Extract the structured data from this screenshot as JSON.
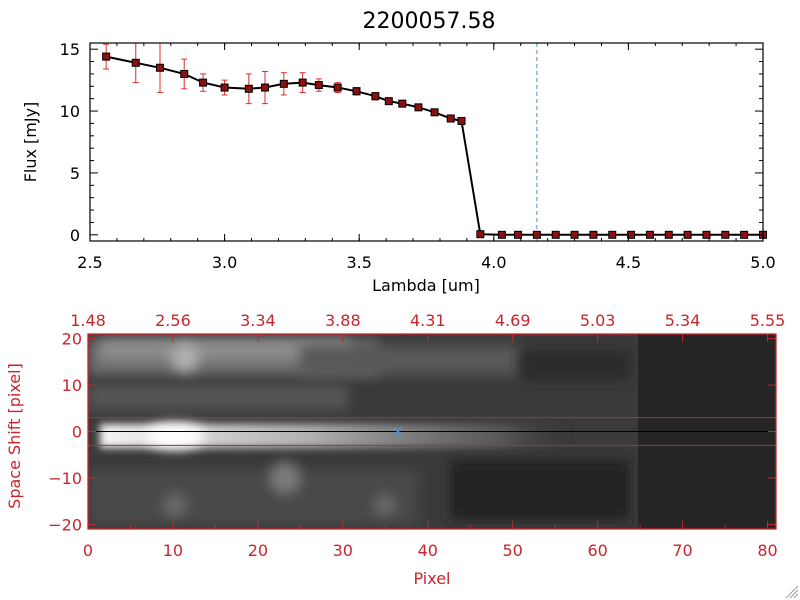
{
  "colors": {
    "red": "#c8252d",
    "marker_red": "#8b1010",
    "errorbar_red": "#d83030",
    "blue_dash": "#4f8fdc",
    "black": "#000000"
  },
  "chart_data": [
    {
      "type": "line",
      "title": "2200057.58",
      "xlabel": "Lambda [um]",
      "ylabel": "Flux [mJy]",
      "xlim": [
        2.5,
        5.0
      ],
      "ylim": [
        -0.5,
        15.5
      ],
      "x_ticks": [
        "2.5",
        "3.0",
        "3.5",
        "4.0",
        "4.5",
        "5.0"
      ],
      "x_tick_values": [
        2.5,
        3.0,
        3.5,
        4.0,
        4.5,
        5.0
      ],
      "y_ticks": [
        "0",
        "5",
        "10",
        "15"
      ],
      "y_tick_values": [
        0,
        5,
        10,
        15
      ],
      "vline_x": 4.16,
      "grid": false,
      "series": [
        {
          "x": [
            2.56,
            2.67,
            2.76,
            2.85,
            2.92,
            3.0,
            3.09,
            3.15,
            3.22,
            3.29,
            3.35,
            3.42,
            3.49,
            3.56,
            3.61,
            3.66,
            3.72,
            3.78,
            3.84,
            3.88,
            3.95,
            4.03,
            4.09,
            4.16,
            4.23,
            4.3,
            4.37,
            4.44,
            4.51,
            4.58,
            4.65,
            4.72,
            4.79,
            4.86,
            4.93,
            5.0
          ],
          "y": [
            14.4,
            13.9,
            13.5,
            13.0,
            12.3,
            11.9,
            11.8,
            11.9,
            12.2,
            12.3,
            12.1,
            11.9,
            11.6,
            11.2,
            10.8,
            10.6,
            10.3,
            9.9,
            9.4,
            9.2,
            0.05,
            0.0,
            0.0,
            0.0,
            0.0,
            0.0,
            0.0,
            0.0,
            0.0,
            0.0,
            0.0,
            0.0,
            0.0,
            0.0,
            0.0,
            0.0
          ],
          "err": [
            1.0,
            1.6,
            2.0,
            1.2,
            0.7,
            0.6,
            1.2,
            1.3,
            0.9,
            0.8,
            0.5,
            0.4,
            0.3,
            0.3,
            0.25,
            0.2,
            0.2,
            0.2,
            0.15,
            0.15,
            0.05,
            0.05,
            0.05,
            0.05,
            0.05,
            0.05,
            0.05,
            0.05,
            0.05,
            0.05,
            0.05,
            0.05,
            0.05,
            0.05,
            0.05,
            0.05
          ]
        }
      ]
    },
    {
      "type": "heatmap",
      "xlabel": "Pixel",
      "ylabel": "Space Shift [pixel]",
      "xlim": [
        0,
        81
      ],
      "ylim": [
        -21,
        21
      ],
      "x_ticks": [
        "0",
        "10",
        "20",
        "30",
        "40",
        "50",
        "60",
        "70",
        "80"
      ],
      "x_tick_values": [
        0,
        10,
        20,
        30,
        40,
        50,
        60,
        70,
        80
      ],
      "y_ticks": [
        "20",
        "10",
        "0",
        "−10",
        "−20"
      ],
      "y_tick_values": [
        20,
        10,
        0,
        -10,
        -20
      ],
      "top_ticks": [
        "1.48",
        "2.56",
        "3.34",
        "3.88",
        "4.31",
        "4.69",
        "5.03",
        "5.34",
        "5.55"
      ],
      "hlines_y": [
        3,
        0,
        -3
      ],
      "marker": {
        "x": 36.5,
        "y": 0
      },
      "blob_x": 10,
      "dark_region_start_x": 65
    }
  ]
}
